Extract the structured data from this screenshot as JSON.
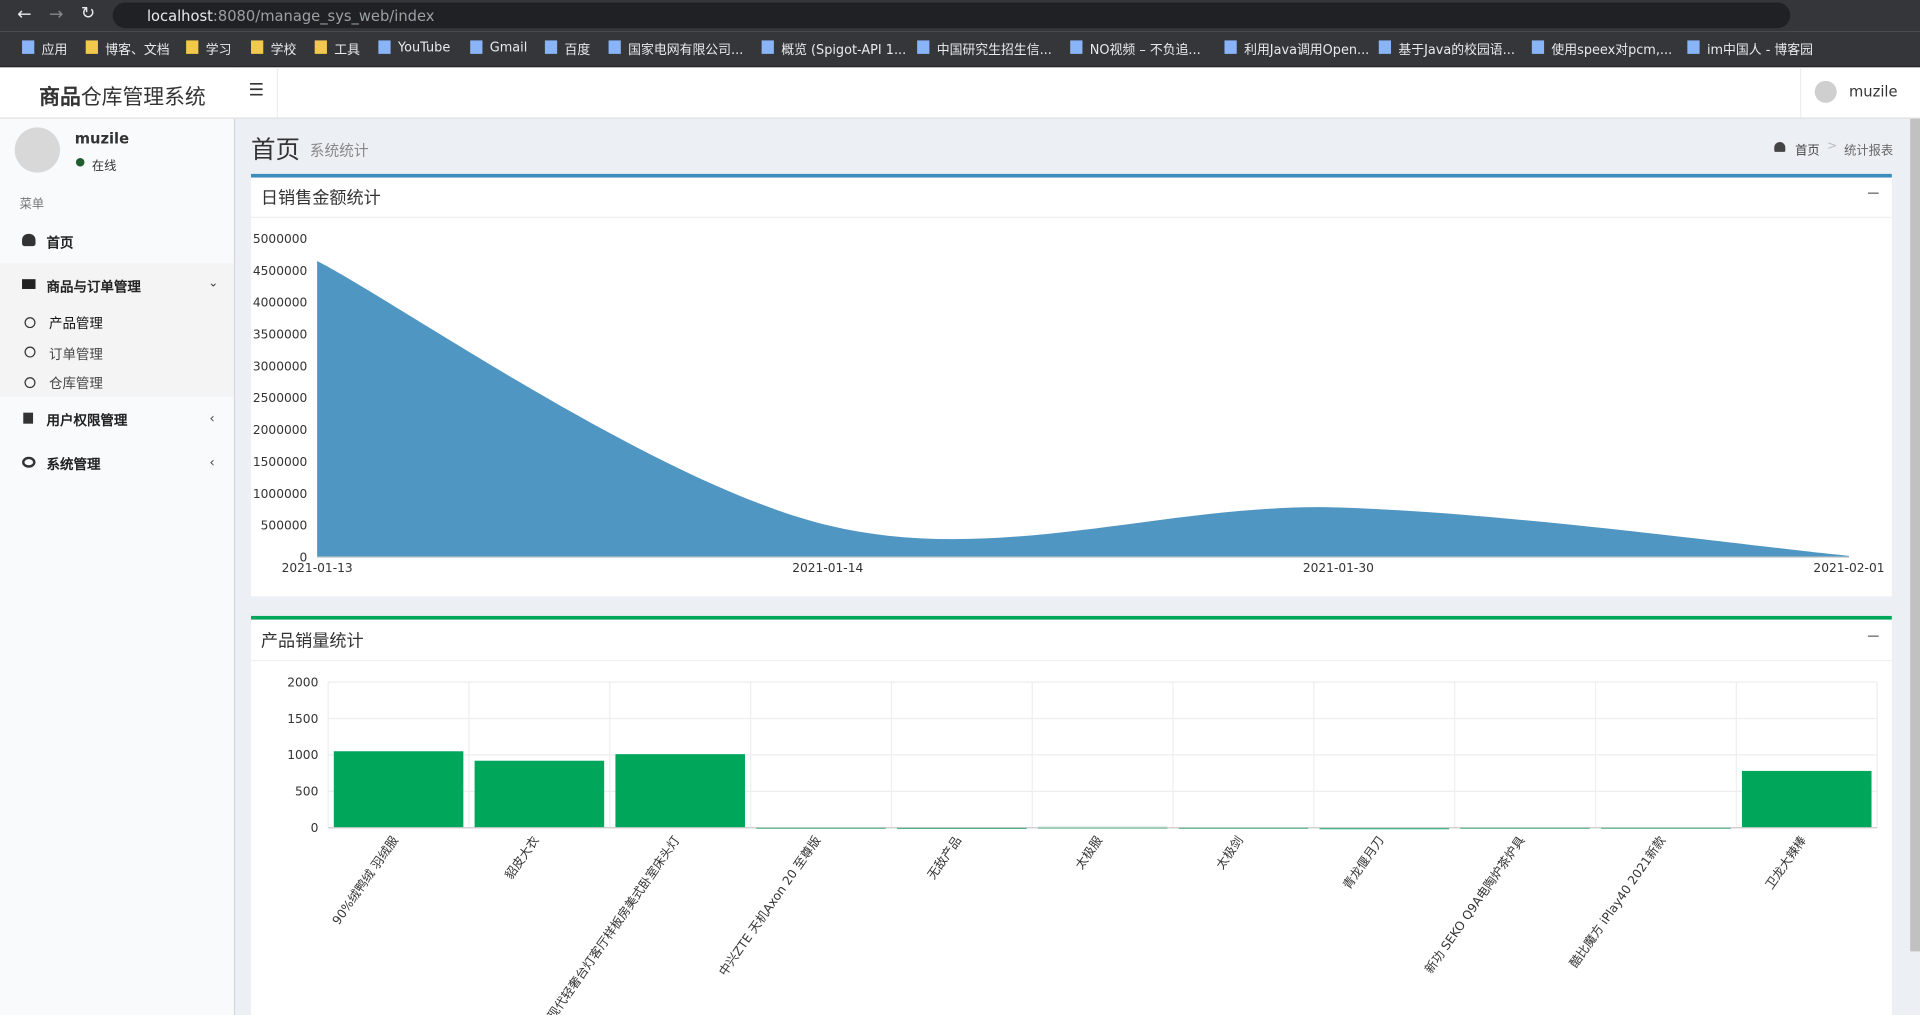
{
  "browser": {
    "url_host": "localhost",
    "url_path": ":8080/manage_sys_web/index",
    "bookmarks": [
      "应用",
      "博客、文档",
      "学习",
      "学校",
      "工具",
      "YouTube",
      "Gmail",
      "百度",
      "国家电网有限公司...",
      "概览 (Spigot-API 1...",
      "中国研究生招生信...",
      "NO视频 – 不负追...",
      "利用Java调用Open...",
      "基于Java的校园语...",
      "使用speex对pcm,...",
      "im中国人 - 博客园"
    ]
  },
  "header": {
    "logo_bold": "商品",
    "logo_rest": "仓库管理系统",
    "user": "muzile"
  },
  "sidebar": {
    "user": "muzile",
    "status": "在线",
    "menu_header": "菜单",
    "items": [
      {
        "label": "首页"
      },
      {
        "label": "商品与订单管理",
        "children": [
          "产品管理",
          "订单管理",
          "仓库管理"
        ]
      },
      {
        "label": "用户权限管理"
      },
      {
        "label": "系统管理"
      }
    ]
  },
  "content": {
    "title": "首页",
    "subtitle": "系统统计",
    "breadcrumb": [
      "首页",
      "统计报表"
    ]
  },
  "chart_data": [
    {
      "type": "area",
      "title": "日销售金额统计",
      "categories": [
        "2021-01-13",
        "2021-01-14",
        "2021-01-30",
        "2021-02-01"
      ],
      "values": [
        4650000,
        500000,
        780000,
        20000
      ],
      "color": "#4f96c3",
      "ylim": [
        0,
        5000000
      ],
      "yticks": [
        0,
        500000,
        1000000,
        1500000,
        2000000,
        2500000,
        3000000,
        3500000,
        4000000,
        4500000,
        5000000
      ],
      "grid": false
    },
    {
      "type": "bar",
      "title": "产品销量统计",
      "categories": [
        "90%绒鸭绒 羽绒服",
        "貂皮大衣",
        "现代轻奢台灯客厅样板房美式卧室床头灯",
        "中兴ZTE 天机Axon 20 至尊版",
        "无敌产品",
        "太极服",
        "太极剑",
        "青龙偃月刀",
        "新功 SEKO Q9A电陶炉茶炉具",
        "酷比魔方 iPlay40 2021新款",
        "卫龙大辣棒"
      ],
      "values": [
        1050,
        920,
        1010,
        10,
        8,
        12,
        10,
        5,
        10,
        10,
        780
      ],
      "color": "#00a65a",
      "ylim": [
        0,
        2000
      ],
      "yticks": [
        0,
        500,
        1000,
        1500,
        2000
      ],
      "grid": true
    }
  ]
}
